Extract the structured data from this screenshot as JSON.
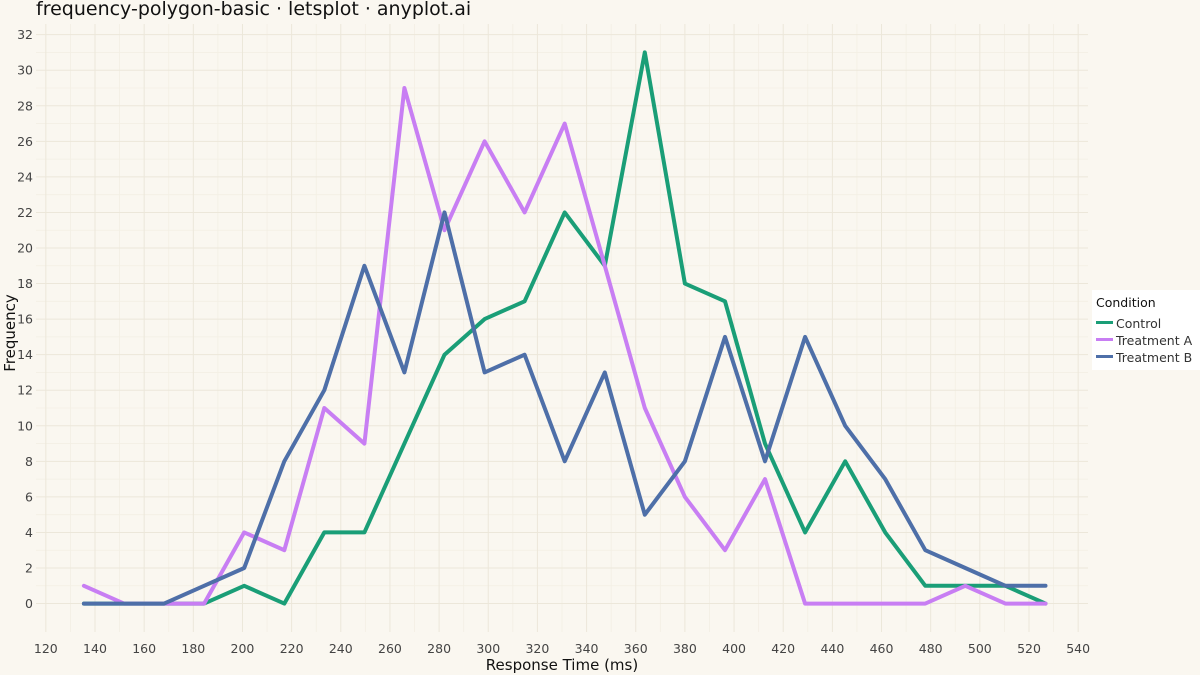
{
  "title": "frequency-polygon-basic · letsplot · anyplot.ai",
  "chart_data": {
    "type": "line",
    "title": "frequency-polygon-basic · letsplot · anyplot.ai",
    "xlabel": "Response Time (ms)",
    "ylabel": "Frequency",
    "xlim": [
      116,
      544
    ],
    "ylim": [
      -1.6,
      32.6
    ],
    "x_ticks": [
      120,
      140,
      160,
      180,
      200,
      220,
      240,
      260,
      280,
      300,
      320,
      340,
      360,
      380,
      400,
      420,
      440,
      460,
      480,
      500,
      520,
      540
    ],
    "y_ticks": [
      0,
      2,
      4,
      6,
      8,
      10,
      12,
      14,
      16,
      18,
      20,
      22,
      24,
      26,
      28,
      30,
      32
    ],
    "grid": true,
    "legend": {
      "title": "Condition",
      "position": "right"
    },
    "x": [
      135.5,
      151.8,
      168.1,
      184.4,
      200.7,
      217.0,
      233.3,
      249.6,
      265.9,
      282.2,
      298.5,
      314.8,
      331.1,
      347.4,
      363.7,
      380.0,
      396.3,
      412.6,
      428.9,
      445.2,
      461.5,
      477.8,
      494.1,
      510.4,
      526.7
    ],
    "series": [
      {
        "name": "Control",
        "color": "#1a9e77",
        "values": [
          0,
          0,
          0,
          0,
          1,
          0,
          4,
          4,
          9,
          14,
          16,
          17,
          22,
          19,
          31,
          18,
          17,
          9,
          4,
          8,
          4,
          1,
          1,
          1,
          0
        ]
      },
      {
        "name": "Treatment A",
        "color": "#c87ef3",
        "values": [
          1,
          0,
          0,
          0,
          4,
          3,
          11,
          9,
          29,
          21,
          26,
          22,
          27,
          19,
          11,
          6,
          3,
          7,
          0,
          0,
          0,
          0,
          1,
          0,
          0
        ]
      },
      {
        "name": "Treatment B",
        "color": "#4e6fa8",
        "values": [
          0,
          0,
          0,
          1,
          2,
          8,
          12,
          19,
          13,
          22,
          13,
          14,
          8,
          13,
          5,
          8,
          15,
          8,
          15,
          10,
          7,
          3,
          2,
          1,
          1
        ]
      }
    ]
  }
}
